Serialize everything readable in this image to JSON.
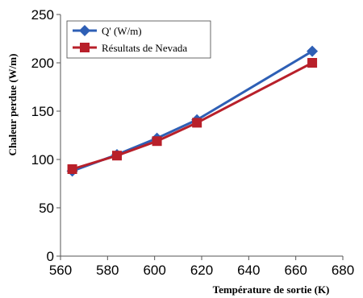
{
  "chart_data": {
    "type": "line",
    "xlabel": "Température de sortie (K)",
    "ylabel": "Chaleur perdue (W/m)",
    "xlim": [
      560,
      680
    ],
    "ylim": [
      0,
      250
    ],
    "xticks": [
      560,
      580,
      600,
      620,
      640,
      660,
      680
    ],
    "yticks": [
      0,
      50,
      100,
      150,
      200,
      250
    ],
    "grid": false,
    "legend_position": "top-left",
    "series": [
      {
        "name": "Q' (W/m)",
        "color": "#2e5fb5",
        "marker": "diamond",
        "x": [
          565,
          584,
          601,
          618,
          667
        ],
        "y": [
          88,
          105,
          122,
          141,
          212
        ]
      },
      {
        "name": "Résultats de Nevada",
        "color": "#b8202a",
        "marker": "square",
        "x": [
          565,
          584,
          601,
          618,
          667
        ],
        "y": [
          90,
          104,
          119,
          138,
          200
        ]
      }
    ]
  }
}
